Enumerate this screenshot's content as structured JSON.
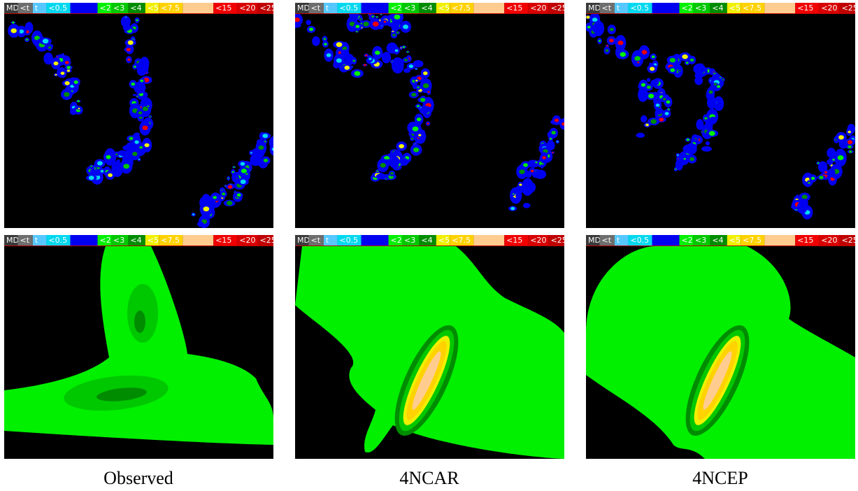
{
  "legend": {
    "items": [
      {
        "label": "MD",
        "color": "#3a3a3a"
      },
      {
        "label": "<t",
        "color": "#6e6e6e"
      },
      {
        "label": "t",
        "color": "#56c8ff"
      },
      {
        "label": "<0.5",
        "color": "#00d8f0"
      },
      {
        "color": "#0000f0"
      },
      {
        "label": "<2",
        "color": "#00f000"
      },
      {
        "label": "<3",
        "color": "#00c800"
      },
      {
        "label": "<4",
        "color": "#008c00"
      },
      {
        "label": "<5",
        "color": "#f0f000"
      },
      {
        "label": "<7.5",
        "color": "#ffd200"
      },
      {
        "color": "#ffcc90"
      },
      {
        "label": "<15",
        "color": "#f00000"
      },
      {
        "label": "<20",
        "color": "#d80000"
      },
      {
        "label": "<25",
        "color": "#c00000"
      }
    ]
  },
  "captions": [
    "Observed",
    "4NCAR",
    "4NCEP"
  ]
}
